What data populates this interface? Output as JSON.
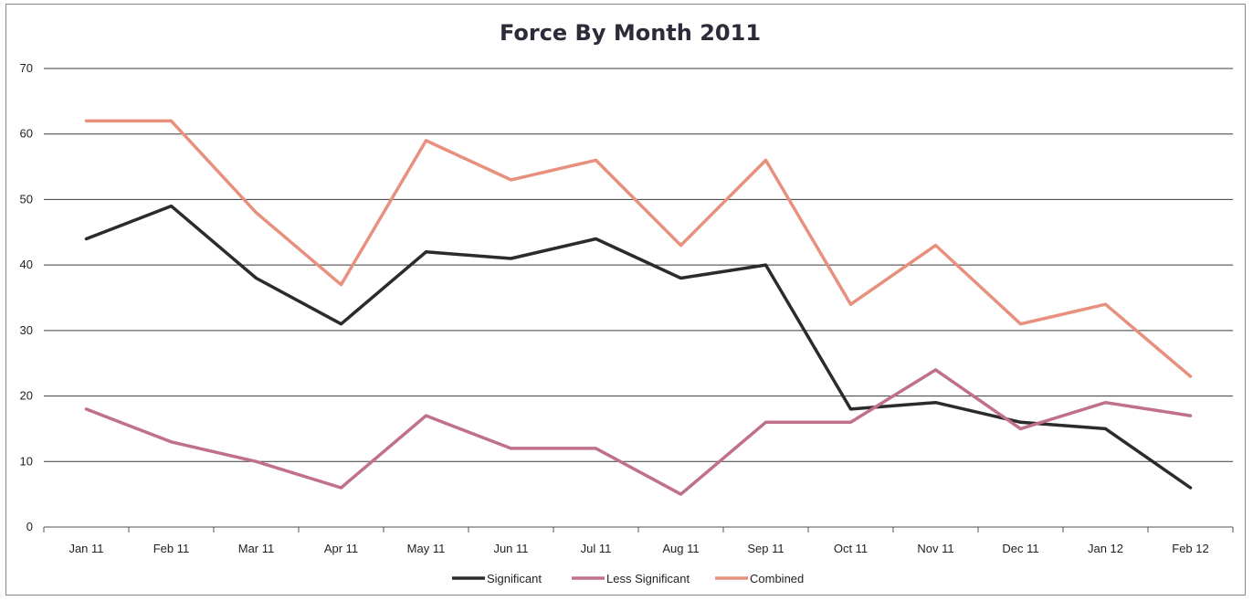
{
  "chart_data": {
    "type": "line",
    "title": "Force By Month 2011",
    "xlabel": "",
    "ylabel": "",
    "categories": [
      "Jan 11",
      "Feb 11",
      "Mar 11",
      "Apr 11",
      "May 11",
      "Jun 11",
      "Jul 11",
      "Aug 11",
      "Sep 11",
      "Oct 11",
      "Nov 11",
      "Dec 11",
      "Jan 12",
      "Feb 12"
    ],
    "ylim": [
      0,
      70
    ],
    "yticks": [
      0,
      10,
      20,
      30,
      40,
      50,
      60,
      70
    ],
    "grid": true,
    "legend_position": "bottom",
    "series": [
      {
        "name": "Significant",
        "color": "#2b2b2b",
        "values": [
          44,
          49,
          38,
          31,
          42,
          41,
          44,
          38,
          40,
          18,
          19,
          16,
          15,
          6
        ]
      },
      {
        "name": "Less Significant",
        "color": "#c0708e",
        "values": [
          18,
          13,
          10,
          6,
          17,
          12,
          12,
          5,
          16,
          16,
          24,
          15,
          19,
          17
        ]
      },
      {
        "name": "Combined",
        "color": "#e8907e",
        "values": [
          62,
          62,
          48,
          37,
          59,
          53,
          56,
          43,
          56,
          34,
          43,
          31,
          34,
          23
        ]
      }
    ]
  }
}
